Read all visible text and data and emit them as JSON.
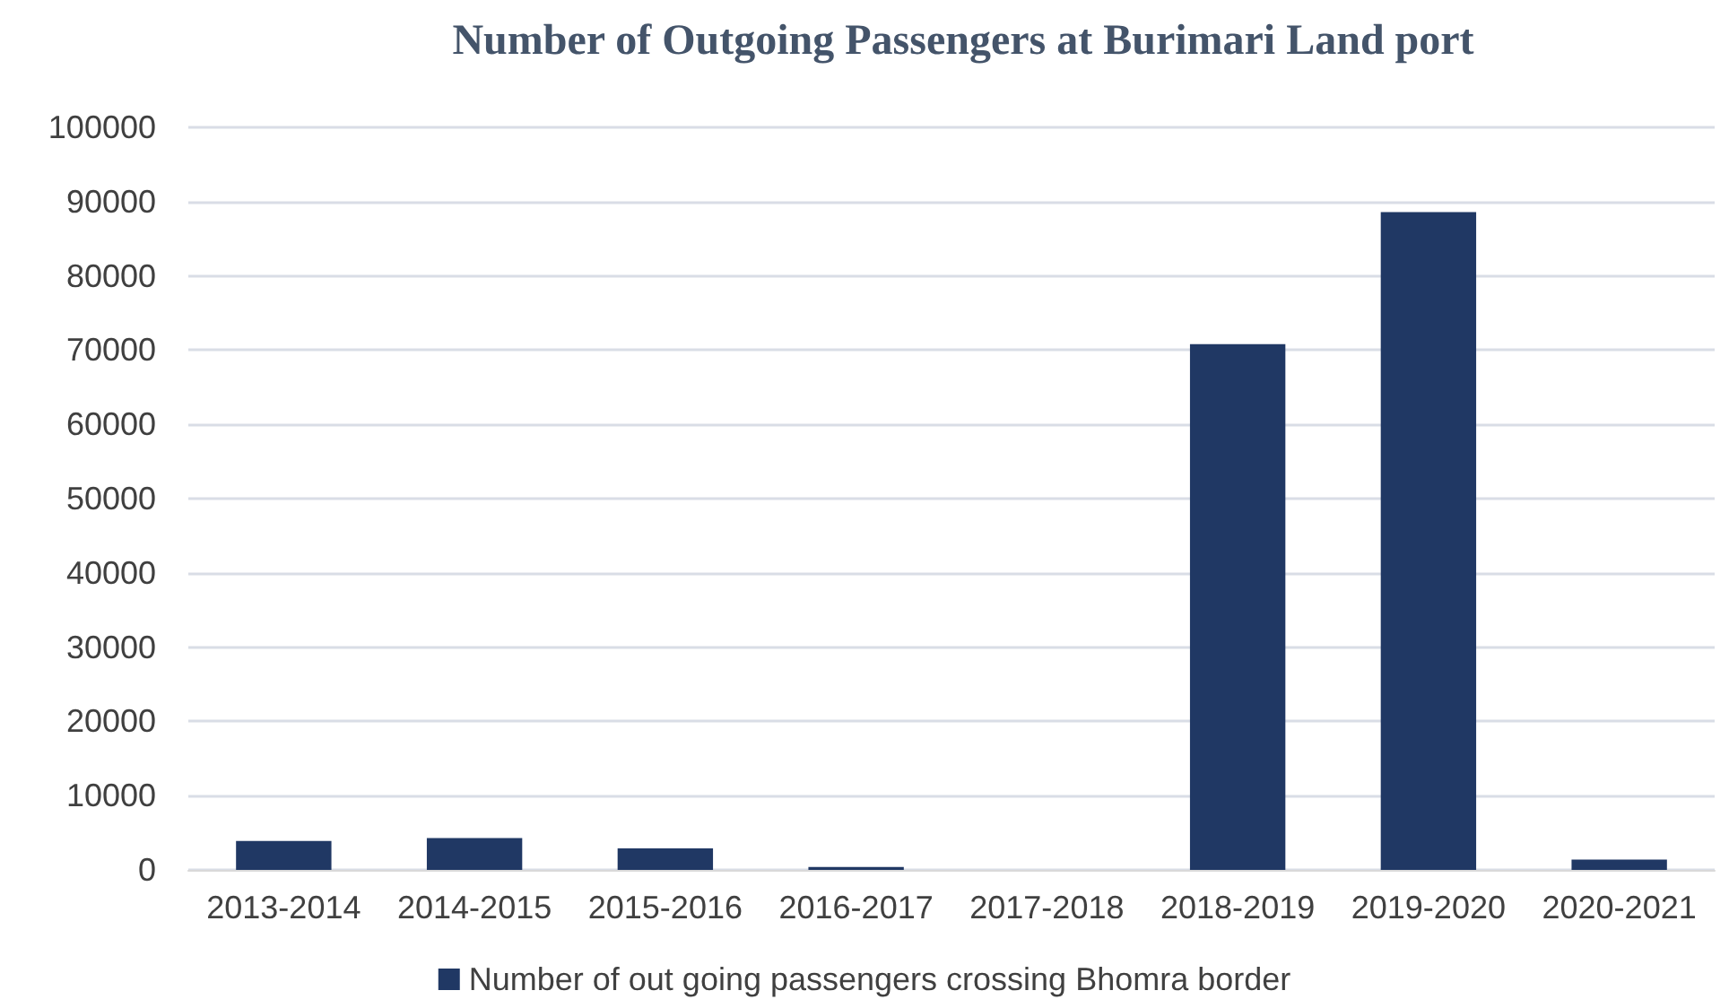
{
  "chart_data": {
    "type": "bar",
    "title": "Number of Outgoing Passengers at Burimari Land port",
    "categories": [
      "2013-2014",
      "2014-2015",
      "2015-2016",
      "2016-2017",
      "2017-2018",
      "2018-2019",
      "2019-2020",
      "2020-2021"
    ],
    "series": [
      {
        "name": "Number of out going passengers crossing Bhomra border",
        "color": "#203864",
        "values": [
          3900,
          4300,
          2900,
          400,
          0,
          70800,
          88600,
          1400
        ]
      }
    ],
    "ylim": [
      0,
      100000
    ],
    "yticks": [
      0,
      10000,
      20000,
      30000,
      40000,
      50000,
      60000,
      70000,
      80000,
      90000,
      100000
    ],
    "grid": "y",
    "legend": "bottom"
  }
}
